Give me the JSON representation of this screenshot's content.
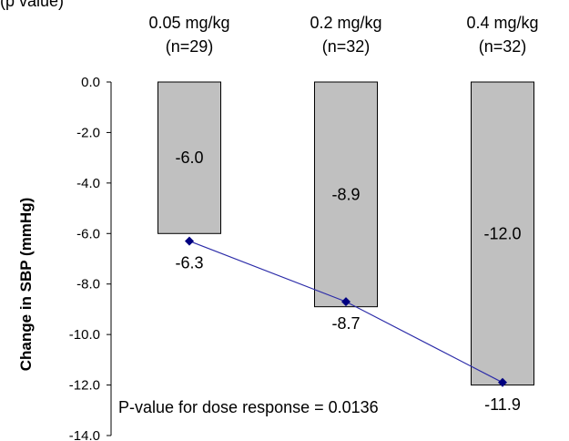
{
  "header_fragment": "(p value)",
  "chart_data": {
    "type": "bar",
    "categories": [
      [
        "0.05 mg/kg",
        "(n=29)"
      ],
      [
        "0.2 mg/kg",
        "(n=32)"
      ],
      [
        "0.4 mg/kg",
        "(n=32)"
      ]
    ],
    "series": [
      {
        "kind": "bar",
        "values": [
          -6.0,
          -8.9,
          -12.0
        ],
        "labels": [
          "-6.0",
          "-8.9",
          "-12.0"
        ]
      },
      {
        "kind": "line",
        "values": [
          -6.3,
          -8.7,
          -11.9
        ],
        "labels": [
          "-6.3",
          "-8.7",
          "-11.9"
        ]
      }
    ],
    "ylabel": "Change in SBP (mmHg)",
    "xlabel": "",
    "title": "",
    "ylim": [
      -14.0,
      0.0
    ],
    "yticks": [
      "0.0",
      "-2.0",
      "-4.0",
      "-6.0",
      "-8.0",
      "-10.0",
      "-12.0",
      "-14.0"
    ],
    "annotation": "P-value for dose response = 0.0136",
    "grid": false,
    "colors": {
      "bar_fill": "#c0c0c0",
      "bar_stroke": "#000000",
      "line": "#2b2ba8",
      "marker": "#000080"
    }
  }
}
